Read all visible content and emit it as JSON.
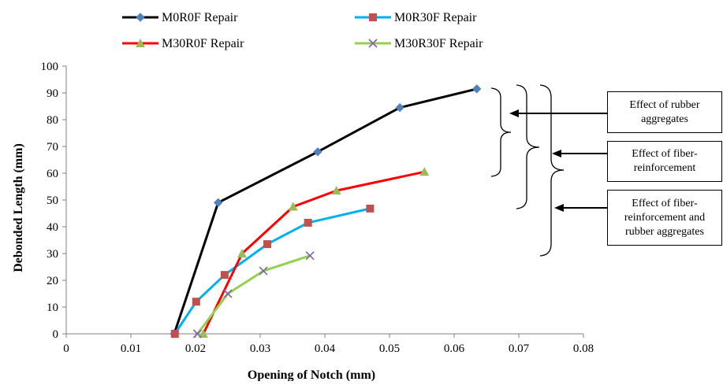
{
  "chart_data": {
    "type": "line",
    "xlabel": "Opening  of Notch (mm)",
    "ylabel": "Debonded Length (mm)",
    "xlim": [
      0,
      0.08
    ],
    "ylim": [
      0,
      100
    ],
    "x_ticks": [
      "0",
      "0.01",
      "0.02",
      "0.03",
      "0.04",
      "0.05",
      "0.06",
      "0.07",
      "0.08"
    ],
    "y_ticks": [
      "0",
      "10",
      "20",
      "30",
      "40",
      "50",
      "60",
      "70",
      "80",
      "90",
      "100"
    ],
    "grid": false,
    "legend_position": "top",
    "series": [
      {
        "name": "M0R0F Repair",
        "line_color": "#000000",
        "marker": "diamond",
        "marker_color": "#4F81BD",
        "x": [
          0.0167,
          0.0235,
          0.0389,
          0.0516,
          0.0635
        ],
        "y": [
          0,
          49,
          68,
          84.5,
          91.5
        ]
      },
      {
        "name": "M0R30F Repair",
        "line_color": "#00B0F0",
        "marker": "square",
        "marker_color": "#C0504D",
        "x": [
          0.0168,
          0.0201,
          0.0245,
          0.0311,
          0.0374,
          0.047
        ],
        "y": [
          0,
          12,
          22,
          33.5,
          41.5,
          46.8
        ]
      },
      {
        "name": "M30R0F Repair",
        "line_color": "#FF0000",
        "marker": "triangle",
        "marker_color": "#9BBB59",
        "x": [
          0.0212,
          0.0272,
          0.0351,
          0.0418,
          0.0554
        ],
        "y": [
          0,
          30,
          47.5,
          53.5,
          60.5
        ]
      },
      {
        "name": "M30R30F Repair",
        "line_color": "#92D050",
        "marker": "x",
        "marker_color": "#8064A2",
        "x": [
          0.0203,
          0.025,
          0.0305,
          0.0377
        ],
        "y": [
          0,
          15,
          23.5,
          29.2
        ]
      }
    ],
    "annotations": [
      {
        "text": "Effect of rubber aggregates"
      },
      {
        "text": "Effect of fiber-reinforcement"
      },
      {
        "text": "Effect of fiber-reinforcement and rubber aggregates"
      }
    ]
  }
}
